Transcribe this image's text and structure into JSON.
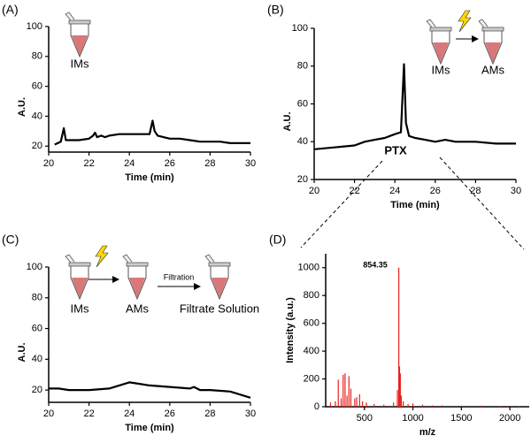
{
  "chart_data": [
    {
      "type": "line",
      "label": "(A)",
      "x_label": "Time (min)",
      "y_label": "A.U.",
      "color": "#000000",
      "x": [
        20.3,
        20.6,
        20.75,
        20.85,
        21,
        21.5,
        22,
        22.2,
        22.3,
        22.4,
        22.6,
        22.8,
        23,
        23.5,
        24,
        24.5,
        25,
        25.15,
        25.25,
        25.4,
        26,
        26.5,
        27,
        27.5,
        28,
        28.5,
        29,
        29.5,
        30
      ],
      "values": [
        21,
        23,
        32,
        24,
        24,
        24,
        25,
        27,
        29,
        26,
        27,
        26,
        27,
        28,
        28,
        28,
        28,
        37,
        30,
        27,
        25,
        25,
        24,
        23,
        23,
        23,
        22,
        22,
        22
      ],
      "xlim": [
        20,
        30
      ],
      "xticks": [
        20,
        22,
        24,
        26,
        28,
        30
      ],
      "ylim": [
        16,
        100
      ],
      "yticks": [
        20,
        40,
        60,
        80,
        100
      ],
      "annotations": [
        "IMs"
      ]
    },
    {
      "type": "line",
      "label": "(B)",
      "x_label": "Time (min)",
      "y_label": "A.U.",
      "color": "#000000",
      "x": [
        20,
        21,
        22,
        22.5,
        23,
        23.5,
        24,
        24.3,
        24.45,
        24.55,
        24.7,
        25,
        25.5,
        26,
        26.5,
        27,
        28,
        29,
        30
      ],
      "values": [
        36,
        37,
        38,
        40,
        41,
        42,
        44,
        45,
        81,
        50,
        43,
        42,
        41,
        40,
        41,
        40,
        40,
        39,
        39
      ],
      "xlim": [
        20,
        30
      ],
      "xticks": [
        20,
        22,
        24,
        26,
        28,
        30
      ],
      "ylim": [
        20,
        100
      ],
      "yticks": [
        20,
        40,
        60,
        80,
        100
      ],
      "annotations": [
        "IMs",
        "AMs",
        "PTX"
      ]
    },
    {
      "type": "line",
      "label": "(C)",
      "x_label": "Time (min)",
      "y_label": "A.U.",
      "color": "#000000",
      "x": [
        20,
        20.5,
        21,
        22,
        23,
        23.5,
        24,
        24.5,
        25,
        26,
        27,
        27.2,
        27.5,
        28,
        29,
        29.5,
        30
      ],
      "values": [
        21,
        21,
        20,
        20,
        21,
        23,
        25,
        24,
        23,
        22,
        21,
        22,
        20,
        20,
        19,
        17,
        15
      ],
      "xlim": [
        20,
        30
      ],
      "xticks": [
        20,
        22,
        24,
        26,
        28,
        30
      ],
      "ylim": [
        12,
        100
      ],
      "yticks": [
        20,
        40,
        60,
        80,
        100
      ],
      "annotations": [
        "IMs",
        "AMs",
        "Filtration",
        "Filtrate Solution"
      ]
    },
    {
      "type": "stem",
      "label": "(D)",
      "x_label": "m/z",
      "y_label": "Intensity (a.u.)",
      "color": "#e8201c",
      "x": [
        150,
        200,
        230,
        260,
        280,
        300,
        320,
        340,
        360,
        400,
        420,
        450,
        480,
        520,
        600,
        700,
        800,
        840,
        854.35,
        862,
        870,
        880,
        900,
        950,
        1000,
        1100,
        1200,
        1300,
        1500,
        1700,
        1900,
        2100
      ],
      "values": [
        30,
        40,
        195,
        60,
        230,
        240,
        80,
        220,
        130,
        60,
        70,
        90,
        40,
        30,
        20,
        15,
        30,
        120,
        1000,
        290,
        240,
        80,
        40,
        20,
        25,
        15,
        10,
        10,
        8,
        8,
        6,
        5
      ],
      "xlim": [
        100,
        2200
      ],
      "xticks": [
        500,
        1000,
        1500,
        2000
      ],
      "ylim": [
        0,
        1100
      ],
      "yticks": [
        0,
        200,
        400,
        600,
        800,
        1000
      ],
      "annotations": [
        "854.35"
      ]
    }
  ]
}
